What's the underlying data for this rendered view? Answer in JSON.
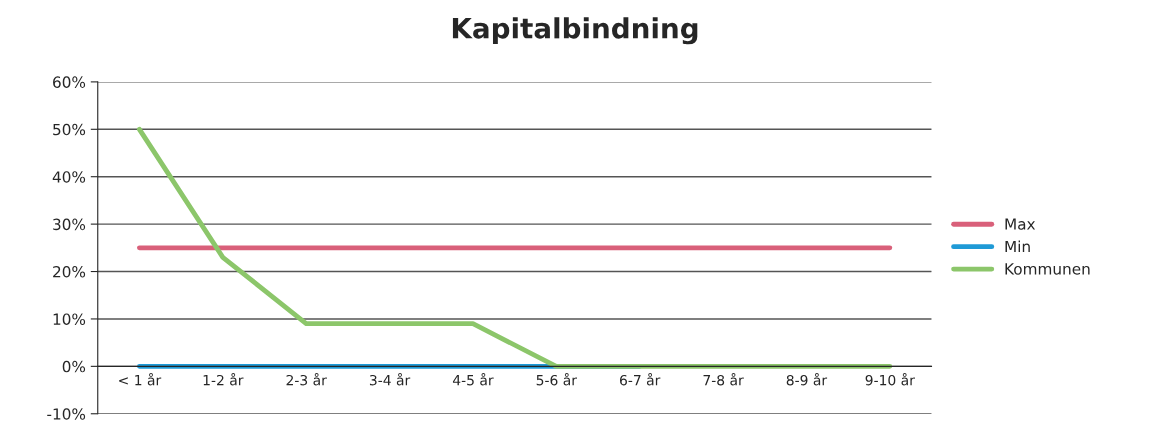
{
  "chart_data": {
    "type": "line",
    "title": "Kapitalbindning",
    "categories": [
      "< 1 år",
      "1-2 år",
      "2-3 år",
      "3-4 år",
      "4-5 år",
      "5-6 år",
      "6-7 år",
      "7-8 år",
      "8-9 år",
      "9-10 år"
    ],
    "series": [
      {
        "name": "Max",
        "color": "#d9607a",
        "values": [
          25,
          25,
          25,
          25,
          25,
          25,
          25,
          25,
          25,
          25
        ]
      },
      {
        "name": "Min",
        "color": "#1f9ad6",
        "values": [
          0,
          0,
          0,
          0,
          0,
          0,
          0,
          null,
          null,
          null
        ]
      },
      {
        "name": "Kommunen",
        "color": "#8cc66a",
        "values": [
          50,
          23,
          9,
          9,
          9,
          0,
          0,
          0,
          0,
          0
        ]
      }
    ],
    "ylim": [
      -10,
      60
    ],
    "yticks": [
      {
        "value": -10,
        "label": "-10%"
      },
      {
        "value": 0,
        "label": "0%"
      },
      {
        "value": 10,
        "label": "10%"
      },
      {
        "value": 20,
        "label": "20%"
      },
      {
        "value": 30,
        "label": "30%"
      },
      {
        "value": 40,
        "label": "40%"
      },
      {
        "value": 50,
        "label": "50%"
      },
      {
        "value": 60,
        "label": "60%"
      }
    ],
    "grid": "y",
    "legend": "right",
    "marker": "none",
    "line_style": "solid"
  }
}
